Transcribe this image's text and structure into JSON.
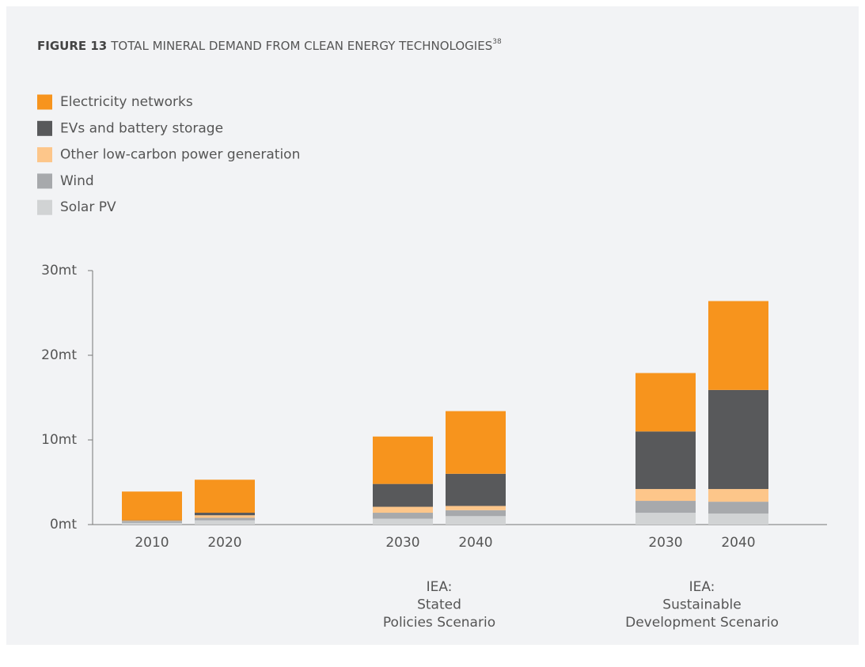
{
  "chart_data": {
    "type": "stacked_bar",
    "title": {
      "label": "FIGURE 13",
      "text": "TOTAL MINERAL DEMAND FROM CLEAN ENERGY TECHNOLOGIES",
      "note": "38"
    },
    "categories": [
      "2010",
      "2020",
      "2030",
      "2040",
      "2030",
      "2040"
    ],
    "groups": [
      {
        "label": [
          "IEA:",
          "Stated",
          "Policies Scenario"
        ]
      },
      {
        "label": [
          "IEA:",
          "Sustainable",
          "Development Scenario"
        ]
      }
    ],
    "series": [
      {
        "name": "Solar PV",
        "color": "#d1d3d4",
        "values": [
          0.2,
          0.5,
          0.7,
          1.0,
          1.4,
          1.3
        ]
      },
      {
        "name": "Wind",
        "color": "#a7a9ac",
        "values": [
          0.2,
          0.3,
          0.7,
          0.7,
          1.4,
          1.4
        ]
      },
      {
        "name": "Other low-carbon power generation",
        "color": "#fdc68a",
        "values": [
          0.05,
          0.3,
          0.7,
          0.5,
          1.4,
          1.5
        ]
      },
      {
        "name": "EVs and battery storage",
        "color": "#58595b",
        "values": [
          0.05,
          0.3,
          2.7,
          3.8,
          6.8,
          11.7
        ]
      },
      {
        "name": "Electricity networks",
        "color": "#f7941d",
        "values": [
          3.4,
          3.9,
          5.6,
          7.4,
          6.9,
          10.5
        ]
      }
    ],
    "ylim": [
      0,
      30
    ],
    "yticks": [
      {
        "value": 0,
        "label": "0mt"
      },
      {
        "value": 10,
        "label": "10mt"
      },
      {
        "value": 20,
        "label": "20mt"
      },
      {
        "value": 30,
        "label": "30mt"
      }
    ]
  }
}
